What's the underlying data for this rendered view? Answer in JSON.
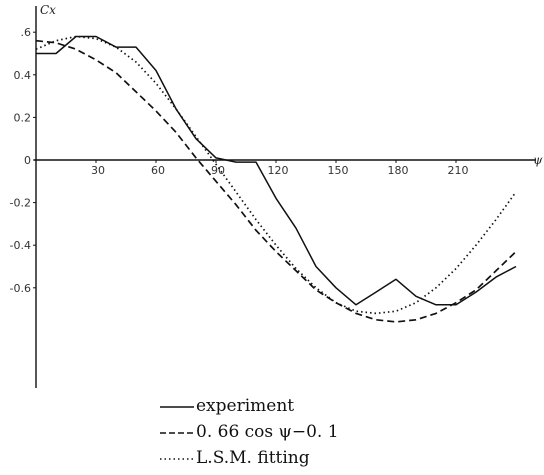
{
  "chart_data": {
    "type": "line",
    "title": "",
    "ylabel": "Cx",
    "xlabel": "ψ",
    "xlim": [
      0,
      240
    ],
    "ylim": [
      -1.0,
      0.6
    ],
    "x_ticks": [
      30,
      60,
      90,
      120,
      150,
      180,
      210
    ],
    "x_tick_labels": [
      "30",
      "60",
      "90",
      "120",
      "150",
      "180",
      "210"
    ],
    "y_ticks": [
      0.6,
      0.4,
      0.2,
      0,
      -0.2,
      -0.4,
      -0.6
    ],
    "y_tick_labels": [
      ".6",
      "0.4",
      "0.2",
      "0",
      "-0.2",
      "-0.4",
      "-0.6"
    ],
    "grid": false,
    "legend_placement": "bottom",
    "series": [
      {
        "name": "experiment",
        "style": "solid",
        "x": [
          0,
          10,
          20,
          30,
          40,
          50,
          60,
          70,
          80,
          90,
          100,
          110,
          120,
          130,
          140,
          150,
          160,
          170,
          180,
          190,
          200,
          210,
          220,
          230,
          240
        ],
        "y": [
          0.5,
          0.5,
          0.58,
          0.58,
          0.53,
          0.53,
          0.42,
          0.24,
          0.1,
          0.01,
          -0.01,
          -0.01,
          -0.18,
          -0.32,
          -0.5,
          -0.6,
          -0.68,
          -0.62,
          -0.56,
          -0.64,
          -0.68,
          -0.68,
          -0.62,
          -0.55,
          -0.5
        ]
      },
      {
        "name": "0. 66  cos  ψ−0. 1",
        "style": "dashed",
        "x": [
          0,
          10,
          20,
          30,
          40,
          50,
          60,
          70,
          80,
          90,
          100,
          110,
          120,
          130,
          140,
          150,
          160,
          170,
          180,
          190,
          200,
          210,
          220,
          230,
          240
        ],
        "y": [
          0.56,
          0.55,
          0.52,
          0.47,
          0.41,
          0.32,
          0.23,
          0.13,
          0.01,
          -0.1,
          -0.21,
          -0.33,
          -0.43,
          -0.52,
          -0.61,
          -0.67,
          -0.72,
          -0.75,
          -0.76,
          -0.75,
          -0.72,
          -0.67,
          -0.61,
          -0.52,
          -0.43
        ]
      },
      {
        "name": "L.S.M.  fitting",
        "style": "dotted",
        "x": [
          0,
          10,
          20,
          30,
          40,
          50,
          60,
          70,
          80,
          90,
          100,
          110,
          120,
          130,
          140,
          150,
          160,
          170,
          180,
          190,
          200,
          210,
          220,
          230,
          240
        ],
        "y": [
          0.52,
          0.56,
          0.58,
          0.57,
          0.53,
          0.46,
          0.36,
          0.24,
          0.11,
          -0.02,
          -0.15,
          -0.28,
          -0.4,
          -0.51,
          -0.6,
          -0.67,
          -0.71,
          -0.72,
          -0.71,
          -0.67,
          -0.6,
          -0.51,
          -0.4,
          -0.28,
          -0.15
        ]
      }
    ]
  }
}
